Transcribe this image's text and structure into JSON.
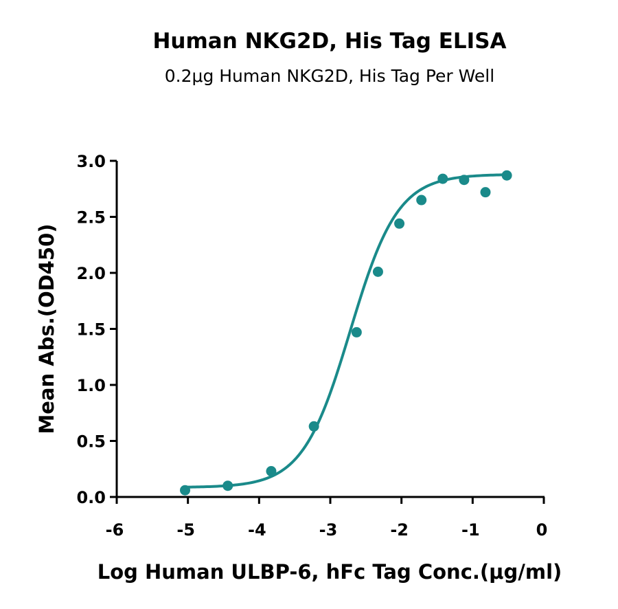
{
  "chart_data": {
    "type": "scatter",
    "title": "Human NKG2D, His Tag ELISA",
    "subtitle": "0.2μg Human NKG2D, His Tag Per Well",
    "xlabel": "Log Human ULBP-6, hFc Tag Conc.(μg/ml)",
    "ylabel": "Mean Abs.(OD450)",
    "xlim": [
      -6,
      0
    ],
    "ylim": [
      0,
      3.0
    ],
    "x_ticks": [
      -6,
      -5,
      -4,
      -3,
      -2,
      -1,
      0
    ],
    "x_tick_labels": [
      "-6",
      "-5",
      "-4",
      "-3",
      "-2",
      "-1",
      "0"
    ],
    "y_ticks": [
      0,
      0.5,
      1.0,
      1.5,
      2.0,
      2.5,
      3.0
    ],
    "y_tick_labels": [
      "0.0",
      "0.5",
      "1.0",
      "1.5",
      "2.0",
      "2.5",
      "3.0"
    ],
    "grid": false,
    "color": "#1a8a8a",
    "series": [
      {
        "x": [
          -5.04,
          -4.44,
          -3.83,
          -3.23,
          -2.63,
          -2.33,
          -2.03,
          -1.72,
          -1.42,
          -1.12,
          -0.82,
          -0.52
        ],
        "y": [
          0.06,
          0.1,
          0.23,
          0.63,
          1.47,
          2.01,
          2.44,
          2.65,
          2.84,
          2.83,
          2.72,
          2.87
        ],
        "fit": "4PL",
        "fit_params": {
          "bottom": 0.085,
          "top": 2.88,
          "logEC50": -2.72,
          "hill": 1.3
        }
      }
    ]
  }
}
